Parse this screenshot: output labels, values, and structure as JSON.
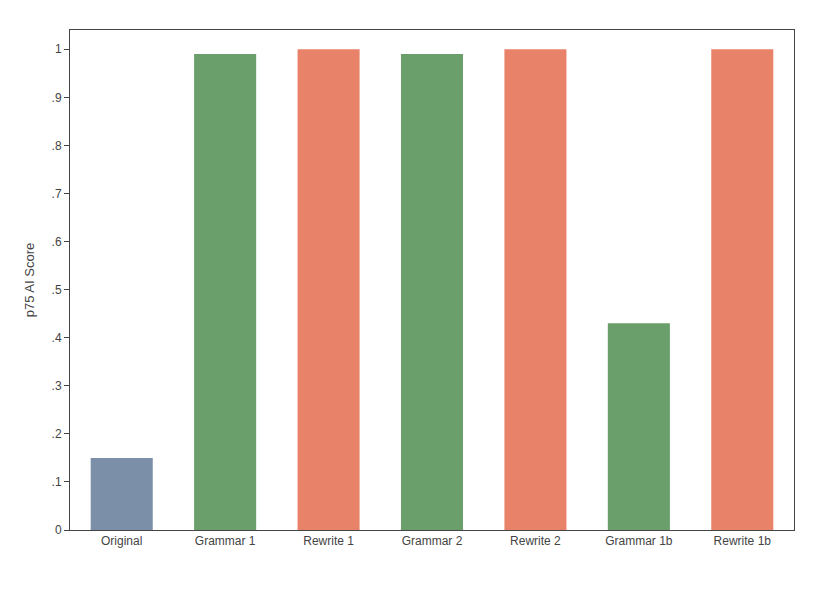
{
  "chart_data": {
    "type": "bar",
    "categories": [
      "Original",
      "Grammar 1",
      "Rewrite 1",
      "Grammar 2",
      "Rewrite 2",
      "Grammar 1b",
      "Rewrite 1b"
    ],
    "values": [
      0.15,
      0.99,
      1.0,
      0.99,
      1.0,
      0.43,
      1.0
    ],
    "colors": [
      "#7b8fa8",
      "#6a9e6a",
      "#e8836a",
      "#6a9e6a",
      "#e8836a",
      "#6a9e6a",
      "#e8836a"
    ],
    "ylabel": "p75 AI Score",
    "ylim": [
      0,
      1.04
    ],
    "yticks": [
      0,
      {
        "value": 0.1,
        "label": ".1"
      },
      {
        "value": 0.2,
        "label": ".2"
      },
      {
        "value": 0.3,
        "label": ".3"
      },
      {
        "value": 0.4,
        "label": ".4"
      },
      {
        "value": 0.5,
        "label": ".5"
      },
      {
        "value": 0.6,
        "label": ".6"
      },
      {
        "value": 0.7,
        "label": ".7"
      },
      {
        "value": 0.8,
        "label": ".8"
      },
      {
        "value": 0.9,
        "label": ".9"
      },
      1
    ],
    "grid": false
  }
}
